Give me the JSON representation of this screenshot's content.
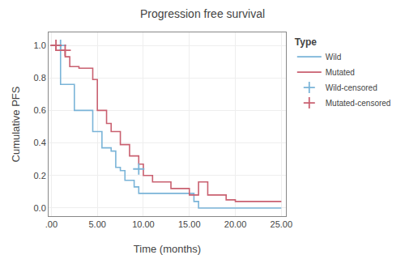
{
  "chart_data": {
    "type": "line",
    "title": "Progression free survival",
    "xlabel": "Time (months)",
    "ylabel": "Cumulative PFS",
    "legend_title": "Type",
    "legend": "right",
    "grid": true,
    "xlim": [
      -0.3,
      25.5
    ],
    "ylim": [
      -0.05,
      1.08
    ],
    "xticks": [
      {
        "value": 0,
        "label": ".00"
      },
      {
        "value": 5,
        "label": "5.00"
      },
      {
        "value": 10,
        "label": "10.00"
      },
      {
        "value": 15,
        "label": "15.00"
      },
      {
        "value": 20,
        "label": "20.00"
      },
      {
        "value": 25,
        "label": "25.00"
      }
    ],
    "yticks": [
      {
        "value": 0.0,
        "label": "0.0"
      },
      0.2,
      0.4,
      0.6,
      0.8,
      {
        "value": 1.0,
        "label": "1.0"
      }
    ],
    "series": [
      {
        "name": "Wild",
        "type": "line",
        "color": "#7ab4d8",
        "x": [
          0,
          1.0,
          1.0,
          2.5,
          2.5,
          4.5,
          4.5,
          5.5,
          5.5,
          6.5,
          6.5,
          7.0,
          7.0,
          7.5,
          7.5,
          8.0,
          8.0,
          9.0,
          9.0,
          9.5,
          9.5,
          15.5,
          15.5,
          16.0,
          16.0,
          25
        ],
        "values": [
          1.0,
          1.0,
          0.76,
          0.76,
          0.6,
          0.6,
          0.47,
          0.47,
          0.37,
          0.37,
          0.35,
          0.35,
          0.25,
          0.25,
          0.23,
          0.23,
          0.17,
          0.17,
          0.13,
          0.13,
          0.09,
          0.09,
          0.04,
          0.04,
          0.0,
          0.0
        ]
      },
      {
        "name": "Mutated",
        "type": "line",
        "color": "#c96070",
        "x": [
          0,
          0.5,
          0.5,
          1.5,
          1.5,
          2.0,
          2.0,
          3.0,
          3.0,
          4.5,
          4.5,
          5.0,
          5.0,
          6.0,
          6.0,
          6.5,
          6.5,
          7.5,
          7.5,
          8.5,
          8.5,
          9.5,
          9.5,
          10.0,
          10.0,
          11.0,
          11.0,
          12.0,
          12.0,
          13.0,
          13.0,
          14.0,
          14.0,
          15.0,
          15.0,
          16.0,
          16.0,
          17.0,
          17.0,
          18.0,
          18.0,
          19.0,
          19.0,
          20.0,
          20.0,
          21.5,
          21.5,
          25
        ],
        "values": [
          1.0,
          1.0,
          0.97,
          0.97,
          0.93,
          0.93,
          0.87,
          0.87,
          0.86,
          0.86,
          0.79,
          0.79,
          0.6,
          0.6,
          0.52,
          0.52,
          0.47,
          0.47,
          0.39,
          0.39,
          0.32,
          0.32,
          0.27,
          0.27,
          0.2,
          0.2,
          0.16,
          0.16,
          0.16,
          0.16,
          0.12,
          0.12,
          0.12,
          0.12,
          0.08,
          0.08,
          0.16,
          0.16,
          0.08,
          0.08,
          0.08,
          0.08,
          0.05,
          0.05,
          0.04,
          0.04,
          0.04,
          0.04
        ]
      },
      {
        "name": "Wild-censored",
        "type": "scatter",
        "marker": "+",
        "color": "#7ab4d8",
        "x": [
          1.0,
          9.5
        ],
        "values": [
          1.0,
          0.24
        ]
      },
      {
        "name": "Mutated-censored",
        "type": "scatter",
        "marker": "+",
        "color": "#c96070",
        "x": [
          0.5,
          1.5
        ],
        "values": [
          1.0,
          0.97
        ]
      }
    ]
  }
}
